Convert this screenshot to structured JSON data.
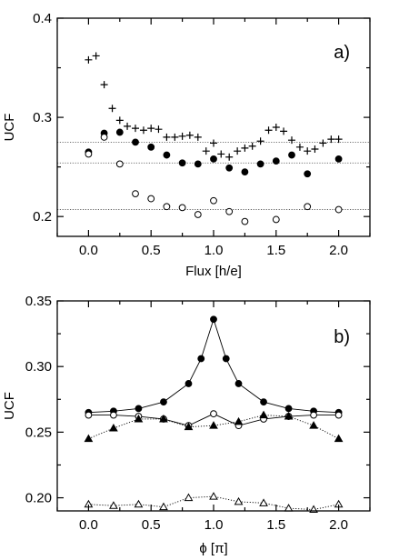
{
  "chart_data": [
    {
      "type": "scatter",
      "panel_label": "a)",
      "xlabel": "Flux [h/e]",
      "ylabel": "UCF",
      "xlim": [
        -0.25,
        2.25
      ],
      "ylim": [
        0.18,
        0.4
      ],
      "x_ticks": [
        0,
        0.5,
        1,
        1.5,
        2
      ],
      "x_tick_labels": [
        "0.0",
        "0.5",
        "1.0",
        "1.5",
        "2.0"
      ],
      "y_ticks": [
        0.2,
        0.3,
        0.4
      ],
      "y_tick_labels": [
        "0.2",
        "0.3",
        "0.4"
      ],
      "x_minor_step": 0.25,
      "y_minor_step": 0.05,
      "grid": false,
      "reference_lines": [
        0.275,
        0.254,
        0.207
      ],
      "series": [
        {
          "marker": "plus",
          "points": [
            [
              0.0,
              0.358
            ],
            [
              0.06,
              0.362
            ],
            [
              0.125,
              0.333
            ],
            [
              0.19,
              0.309
            ],
            [
              0.25,
              0.297
            ],
            [
              0.31,
              0.291
            ],
            [
              0.375,
              0.289
            ],
            [
              0.44,
              0.287
            ],
            [
              0.5,
              0.289
            ],
            [
              0.56,
              0.288
            ],
            [
              0.625,
              0.28
            ],
            [
              0.69,
              0.28
            ],
            [
              0.75,
              0.281
            ],
            [
              0.81,
              0.282
            ],
            [
              0.875,
              0.28
            ],
            [
              0.94,
              0.266
            ],
            [
              1.0,
              0.274
            ],
            [
              1.06,
              0.263
            ],
            [
              1.125,
              0.26
            ],
            [
              1.19,
              0.266
            ],
            [
              1.25,
              0.269
            ],
            [
              1.31,
              0.271
            ],
            [
              1.375,
              0.276
            ],
            [
              1.44,
              0.287
            ],
            [
              1.5,
              0.29
            ],
            [
              1.56,
              0.286
            ],
            [
              1.625,
              0.277
            ],
            [
              1.69,
              0.27
            ],
            [
              1.75,
              0.266
            ],
            [
              1.81,
              0.268
            ],
            [
              1.875,
              0.274
            ],
            [
              1.94,
              0.278
            ],
            [
              2.0,
              0.278
            ]
          ]
        },
        {
          "marker": "filled-circle",
          "points": [
            [
              0.0,
              0.265
            ],
            [
              0.125,
              0.284
            ],
            [
              0.25,
              0.285
            ],
            [
              0.375,
              0.275
            ],
            [
              0.5,
              0.27
            ],
            [
              0.625,
              0.262
            ],
            [
              0.75,
              0.254
            ],
            [
              0.875,
              0.253
            ],
            [
              1.0,
              0.258
            ],
            [
              1.125,
              0.249
            ],
            [
              1.25,
              0.245
            ],
            [
              1.375,
              0.253
            ],
            [
              1.5,
              0.256
            ],
            [
              1.625,
              0.262
            ],
            [
              1.75,
              0.243
            ],
            [
              2.0,
              0.258
            ]
          ]
        },
        {
          "marker": "open-circle",
          "points": [
            [
              0.0,
              0.263
            ],
            [
              0.125,
              0.28
            ],
            [
              0.25,
              0.253
            ],
            [
              0.375,
              0.223
            ],
            [
              0.5,
              0.218
            ],
            [
              0.625,
              0.21
            ],
            [
              0.75,
              0.209
            ],
            [
              0.875,
              0.202
            ],
            [
              1.0,
              0.216
            ],
            [
              1.125,
              0.205
            ],
            [
              1.25,
              0.195
            ],
            [
              1.5,
              0.197
            ],
            [
              1.75,
              0.21
            ],
            [
              2.0,
              0.207
            ]
          ]
        }
      ]
    },
    {
      "type": "line",
      "panel_label": "b)",
      "xlabel": "ϕ [π]",
      "ylabel": "UCF",
      "xlim": [
        -0.25,
        2.25
      ],
      "ylim": [
        0.19,
        0.35
      ],
      "x_ticks": [
        0,
        0.5,
        1,
        1.5,
        2
      ],
      "x_tick_labels": [
        "0.0",
        "0.5",
        "1.0",
        "1.5",
        "2.0"
      ],
      "y_ticks": [
        0.2,
        0.25,
        0.3,
        0.35
      ],
      "y_tick_labels": [
        "0.20",
        "0.25",
        "0.30",
        "0.35"
      ],
      "x_minor_step": 0.25,
      "y_minor_step": 0.025,
      "grid": false,
      "x": [
        0.0,
        0.2,
        0.4,
        0.6,
        0.8,
        0.9,
        1.0,
        1.1,
        1.2,
        1.4,
        1.6,
        1.8,
        2.0
      ],
      "series": [
        {
          "marker": "filled-circle",
          "line": "solid",
          "x": [
            0.0,
            0.2,
            0.4,
            0.6,
            0.8,
            0.9,
            1.0,
            1.1,
            1.2,
            1.4,
            1.6,
            1.8,
            2.0
          ],
          "values": [
            0.265,
            0.266,
            0.268,
            0.273,
            0.287,
            0.306,
            0.336,
            0.306,
            0.287,
            0.273,
            0.268,
            0.266,
            0.265
          ]
        },
        {
          "marker": "open-circle",
          "line": "solid",
          "x": [
            0.0,
            0.2,
            0.4,
            0.6,
            0.8,
            1.0,
            1.2,
            1.4,
            1.6,
            1.8,
            2.0
          ],
          "values": [
            0.263,
            0.263,
            0.262,
            0.26,
            0.255,
            0.264,
            0.255,
            0.26,
            0.262,
            0.263,
            0.263
          ]
        },
        {
          "marker": "filled-triangle",
          "line": "dotted",
          "x": [
            0.0,
            0.2,
            0.4,
            0.6,
            0.8,
            1.0,
            1.2,
            1.4,
            1.6,
            1.8,
            2.0
          ],
          "values": [
            0.245,
            0.253,
            0.26,
            0.26,
            0.254,
            0.255,
            0.258,
            0.263,
            0.262,
            0.255,
            0.245
          ]
        },
        {
          "marker": "open-triangle",
          "line": "dotted",
          "x": [
            0.0,
            0.2,
            0.4,
            0.6,
            0.8,
            1.0,
            1.2,
            1.4,
            1.6,
            1.8,
            2.0
          ],
          "values": [
            0.195,
            0.194,
            0.195,
            0.193,
            0.2,
            0.201,
            0.197,
            0.196,
            0.192,
            0.191,
            0.195
          ]
        }
      ]
    }
  ]
}
